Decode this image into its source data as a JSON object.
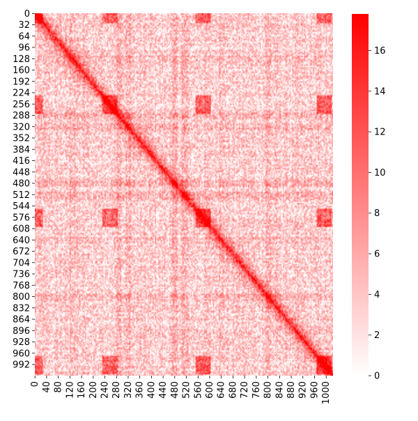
{
  "chart_data": {
    "type": "heatmap",
    "title": "",
    "xlabel": "",
    "ylabel": "",
    "n": 1024,
    "value_range": [
      0,
      17.8
    ],
    "colormap": [
      "#ffffff",
      "#ff0000"
    ],
    "x_ticks": [
      0,
      40,
      80,
      120,
      160,
      200,
      240,
      280,
      320,
      360,
      400,
      440,
      480,
      520,
      560,
      600,
      640,
      680,
      720,
      760,
      800,
      840,
      880,
      920,
      960,
      1000
    ],
    "x_tick_labels": [
      "0",
      "40",
      "80",
      "120",
      "160",
      "200",
      "240",
      "280",
      "320",
      "360",
      "400",
      "440",
      "480",
      "520",
      "560",
      "600",
      "640",
      "680",
      "720",
      "760",
      "800",
      "840",
      "880",
      "920",
      "960",
      "1000"
    ],
    "y_ticks": [
      0,
      32,
      64,
      96,
      128,
      160,
      192,
      224,
      256,
      288,
      320,
      352,
      384,
      416,
      448,
      480,
      512,
      544,
      576,
      608,
      640,
      672,
      704,
      736,
      768,
      800,
      832,
      864,
      896,
      928,
      960,
      992
    ],
    "y_tick_labels": [
      "0",
      "32",
      "64",
      "96",
      "128",
      "160",
      "192",
      "224",
      "256",
      "288",
      "320",
      "352",
      "384",
      "416",
      "448",
      "480",
      "512",
      "544",
      "576",
      "608",
      "640",
      "672",
      "704",
      "736",
      "768",
      "800",
      "832",
      "864",
      "896",
      "928",
      "960",
      "992"
    ],
    "colorbar": {
      "ticks": [
        0,
        2,
        4,
        6,
        8,
        10,
        12,
        14,
        16
      ],
      "tick_labels": [
        "0",
        "2",
        "4",
        "6",
        "8",
        "10",
        "12",
        "14",
        "16"
      ]
    },
    "features": {
      "diagonal": "strong",
      "enriched_positions": [
        0,
        1024,
        576,
        992
      ],
      "banded_positions": [
        128,
        288,
        320,
        480,
        512,
        640,
        800
      ]
    }
  }
}
